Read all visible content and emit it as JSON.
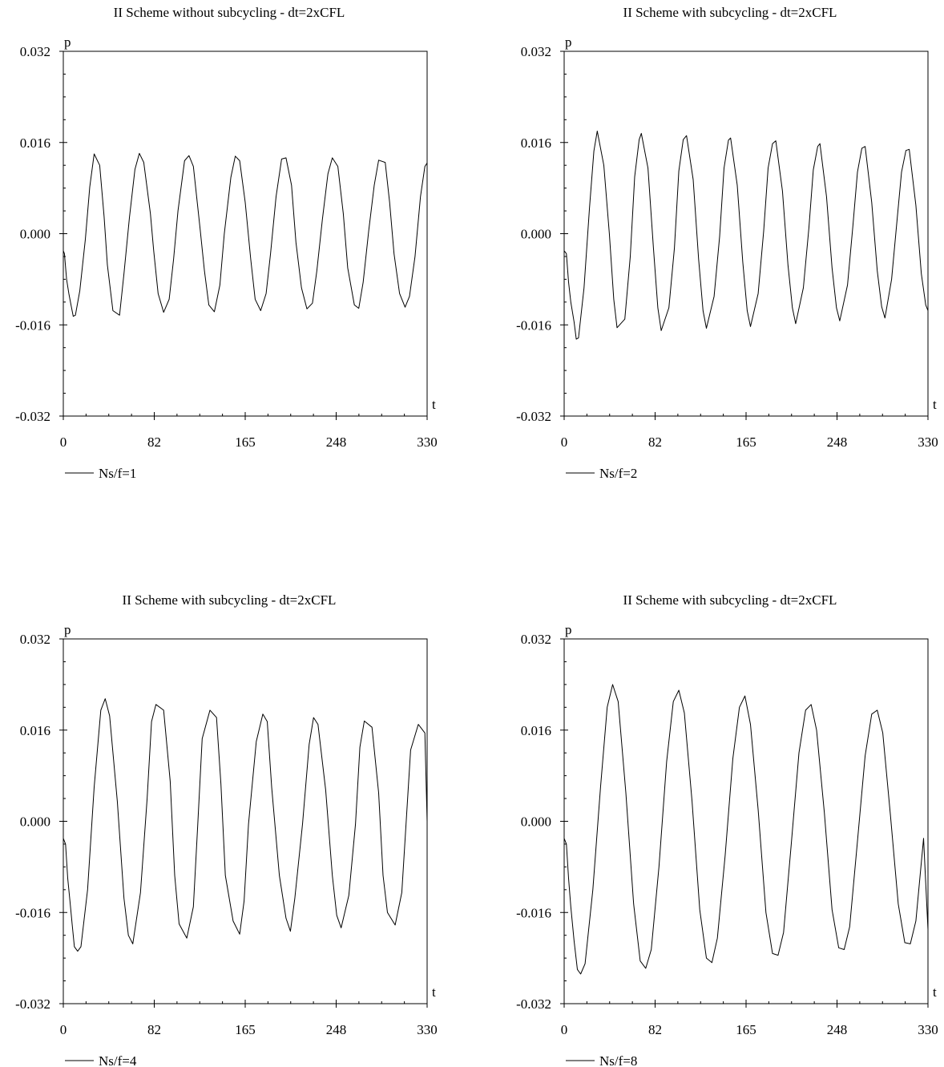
{
  "chart_data": [
    {
      "type": "line",
      "title": "II Scheme without subcycling - dt=2xCFL",
      "xlabel": "t",
      "ylabel": "p",
      "xlim": [
        0,
        330
      ],
      "ylim": [
        -0.032,
        0.032
      ],
      "xticks": [
        "0",
        "82",
        "165",
        "248",
        "330"
      ],
      "yticks": [
        "-0.032",
        "-0.016",
        "0.000",
        "0.016",
        "0.032"
      ],
      "grid": false,
      "legend": "bottom-left",
      "series": [
        {
          "name": "Ns/f=1",
          "x": [
            0,
            1,
            3,
            5,
            7,
            9,
            11,
            15,
            20,
            24,
            28,
            33,
            37,
            40,
            45,
            51,
            55,
            60,
            65,
            69,
            73,
            79,
            82,
            86,
            91,
            96,
            100,
            104,
            110,
            114,
            118,
            124,
            128,
            132,
            137,
            142,
            146,
            152,
            156,
            160,
            165,
            170,
            174,
            179,
            184,
            188,
            193,
            198,
            202,
            207,
            211,
            216,
            221,
            226,
            230,
            235,
            240,
            244,
            249,
            254,
            258,
            264,
            268,
            272,
            277,
            282,
            286,
            292,
            296,
            300,
            305,
            310,
            314,
            319,
            324,
            328,
            330
          ],
          "y": [
            -0.003,
            -0.0035,
            -0.008,
            -0.0105,
            -0.0125,
            -0.0145,
            -0.0143,
            -0.01,
            -0.001,
            0.0082,
            0.014,
            0.012,
            0.003,
            -0.0055,
            -0.0135,
            -0.0143,
            -0.007,
            0.0028,
            0.0113,
            0.0141,
            0.0125,
            0.0035,
            -0.003,
            -0.0105,
            -0.0138,
            -0.0115,
            -0.0045,
            0.004,
            0.0128,
            0.0137,
            0.0118,
            0.001,
            -0.0065,
            -0.0125,
            -0.0137,
            -0.009,
            0.0,
            0.0099,
            0.0136,
            0.0128,
            0.0055,
            -0.0045,
            -0.0115,
            -0.0135,
            -0.0105,
            -0.0035,
            0.0065,
            0.0131,
            0.0133,
            0.0085,
            -0.0015,
            -0.0095,
            -0.0132,
            -0.0122,
            -0.0065,
            0.0025,
            0.0105,
            0.0133,
            0.0118,
            0.0035,
            -0.006,
            -0.0125,
            -0.0131,
            -0.0085,
            0.0005,
            0.0085,
            0.0129,
            0.0125,
            0.0055,
            -0.0035,
            -0.0105,
            -0.0129,
            -0.011,
            -0.004,
            0.0065,
            0.0118,
            0.0124
          ]
        }
      ]
    },
    {
      "type": "line",
      "title": "II Scheme with subcycling - dt=2xCFL",
      "xlabel": "t",
      "ylabel": "p",
      "xlim": [
        0,
        330
      ],
      "ylim": [
        -0.032,
        0.032
      ],
      "xticks": [
        "0",
        "82",
        "165",
        "248",
        "330"
      ],
      "yticks": [
        "-0.032",
        "-0.016",
        "0.000",
        "0.016",
        "0.032"
      ],
      "grid": false,
      "legend": "bottom-left",
      "series": [
        {
          "name": "Ns/f=2",
          "x": [
            0,
            2,
            4,
            6,
            9,
            11,
            13,
            18,
            23,
            27,
            30,
            36,
            41,
            45,
            48,
            55,
            60,
            64,
            68,
            70,
            76,
            81,
            85,
            88,
            95,
            100,
            104,
            108,
            111,
            117,
            122,
            126,
            129,
            136,
            141,
            145,
            149,
            151,
            157,
            162,
            166,
            169,
            176,
            181,
            185,
            189,
            192,
            198,
            203,
            207,
            210,
            217,
            222,
            226,
            230,
            232,
            238,
            243,
            247,
            250,
            257,
            262,
            266,
            270,
            273,
            279,
            284,
            288,
            291,
            297,
            302,
            306,
            310,
            313,
            319,
            324,
            328,
            330
          ],
          "y": [
            -0.003,
            -0.0035,
            -0.0085,
            -0.012,
            -0.0155,
            -0.0185,
            -0.0183,
            -0.0095,
            0.0045,
            0.0145,
            0.018,
            0.012,
            0.0,
            -0.0115,
            -0.0165,
            -0.015,
            -0.004,
            0.01,
            0.0165,
            0.0176,
            0.0115,
            -0.0025,
            -0.013,
            -0.017,
            -0.013,
            -0.0025,
            0.011,
            0.0165,
            0.0172,
            0.0095,
            -0.0045,
            -0.0135,
            -0.0166,
            -0.011,
            -0.0005,
            0.0115,
            0.0164,
            0.0168,
            0.0085,
            -0.005,
            -0.0135,
            -0.0163,
            -0.0105,
            0.0005,
            0.0115,
            0.0158,
            0.0163,
            0.0075,
            -0.0055,
            -0.013,
            -0.0158,
            -0.0095,
            0.001,
            0.0112,
            0.0153,
            0.0158,
            0.0065,
            -0.006,
            -0.013,
            -0.0153,
            -0.009,
            0.0015,
            0.0108,
            0.015,
            0.0153,
            0.0055,
            -0.0065,
            -0.0128,
            -0.0148,
            -0.008,
            0.0025,
            0.0108,
            0.0146,
            0.0148,
            0.005,
            -0.007,
            -0.0125,
            -0.0135
          ]
        }
      ]
    },
    {
      "type": "line",
      "title": "II Scheme with subcycling - dt=2xCFL",
      "xlabel": "t",
      "ylabel": "p",
      "xlim": [
        0,
        330
      ],
      "ylim": [
        -0.032,
        0.032
      ],
      "xticks": [
        "0",
        "82",
        "165",
        "248",
        "330"
      ],
      "yticks": [
        "-0.032",
        "-0.016",
        "0.000",
        "0.016",
        "0.032"
      ],
      "grid": false,
      "legend": "bottom-left",
      "series": [
        {
          "name": "Ns/f=4",
          "x": [
            0,
            2,
            4,
            6,
            8,
            10,
            13,
            16,
            22,
            28,
            34,
            38,
            42,
            49,
            55,
            59,
            63,
            70,
            76,
            80,
            84,
            91,
            97,
            101,
            105,
            112,
            118,
            122,
            126,
            133,
            139,
            143,
            147,
            154,
            160,
            164,
            168,
            175,
            181,
            185,
            189,
            196,
            202,
            206,
            210,
            217,
            223,
            227,
            231,
            238,
            244,
            248,
            252,
            259,
            265,
            269,
            273,
            280,
            286,
            290,
            294,
            301,
            307,
            311,
            315,
            322,
            328,
            330
          ],
          "y": [
            -0.003,
            -0.004,
            -0.01,
            -0.014,
            -0.018,
            -0.022,
            -0.0228,
            -0.022,
            -0.012,
            0.006,
            0.0195,
            0.0215,
            0.0185,
            0.0035,
            -0.0135,
            -0.02,
            -0.0215,
            -0.0125,
            0.004,
            0.0175,
            0.0205,
            0.0195,
            0.007,
            -0.0095,
            -0.018,
            -0.0205,
            -0.015,
            -0.0005,
            0.0145,
            0.0195,
            0.0182,
            0.0065,
            -0.0095,
            -0.0175,
            -0.0198,
            -0.014,
            -0.0005,
            0.014,
            0.0188,
            0.0175,
            0.006,
            -0.0095,
            -0.017,
            -0.0193,
            -0.0135,
            -0.0005,
            0.0135,
            0.0182,
            0.017,
            0.0055,
            -0.0095,
            -0.0165,
            -0.0187,
            -0.013,
            -0.0005,
            0.013,
            0.0176,
            0.0165,
            0.005,
            -0.0095,
            -0.016,
            -0.0182,
            -0.0125,
            0.0,
            0.0125,
            0.017,
            0.0155,
            0.0
          ]
        }
      ]
    },
    {
      "type": "line",
      "title": "II Scheme with subcycling - dt=2xCFL",
      "xlabel": "t",
      "ylabel": "p",
      "xlim": [
        0,
        330
      ],
      "ylim": [
        -0.032,
        0.032
      ],
      "xticks": [
        "0",
        "82",
        "165",
        "248",
        "330"
      ],
      "yticks": [
        "-0.032",
        "-0.016",
        "0.000",
        "0.016",
        "0.032"
      ],
      "grid": false,
      "legend": "bottom-left",
      "series": [
        {
          "name": "Ns/f=8",
          "x": [
            0,
            2,
            4,
            6,
            9,
            12,
            15,
            19,
            26,
            33,
            39,
            44,
            49,
            56,
            63,
            69,
            74,
            79,
            86,
            93,
            99,
            104,
            109,
            116,
            123,
            129,
            134,
            139,
            146,
            153,
            159,
            164,
            169,
            176,
            183,
            189,
            194,
            199,
            206,
            213,
            219,
            224,
            229,
            236,
            243,
            249,
            254,
            259,
            266,
            273,
            279,
            284,
            289,
            296,
            303,
            309,
            314,
            319,
            326,
            330
          ],
          "y": [
            -0.003,
            -0.004,
            -0.01,
            -0.015,
            -0.021,
            -0.026,
            -0.0268,
            -0.025,
            -0.012,
            0.006,
            0.02,
            0.024,
            0.021,
            0.005,
            -0.0145,
            -0.0245,
            -0.0258,
            -0.0225,
            -0.008,
            0.0105,
            0.021,
            0.023,
            0.019,
            0.0035,
            -0.0155,
            -0.024,
            -0.0248,
            -0.0205,
            -0.006,
            0.011,
            0.02,
            0.022,
            0.017,
            0.002,
            -0.016,
            -0.0232,
            -0.0235,
            -0.0195,
            -0.004,
            0.012,
            0.0195,
            0.0205,
            0.016,
            0.0015,
            -0.0155,
            -0.0222,
            -0.0225,
            -0.0185,
            -0.0035,
            0.0115,
            0.0188,
            0.0195,
            0.0155,
            0.001,
            -0.0145,
            -0.0213,
            -0.0215,
            -0.0175,
            -0.003,
            -0.019
          ]
        }
      ]
    }
  ]
}
